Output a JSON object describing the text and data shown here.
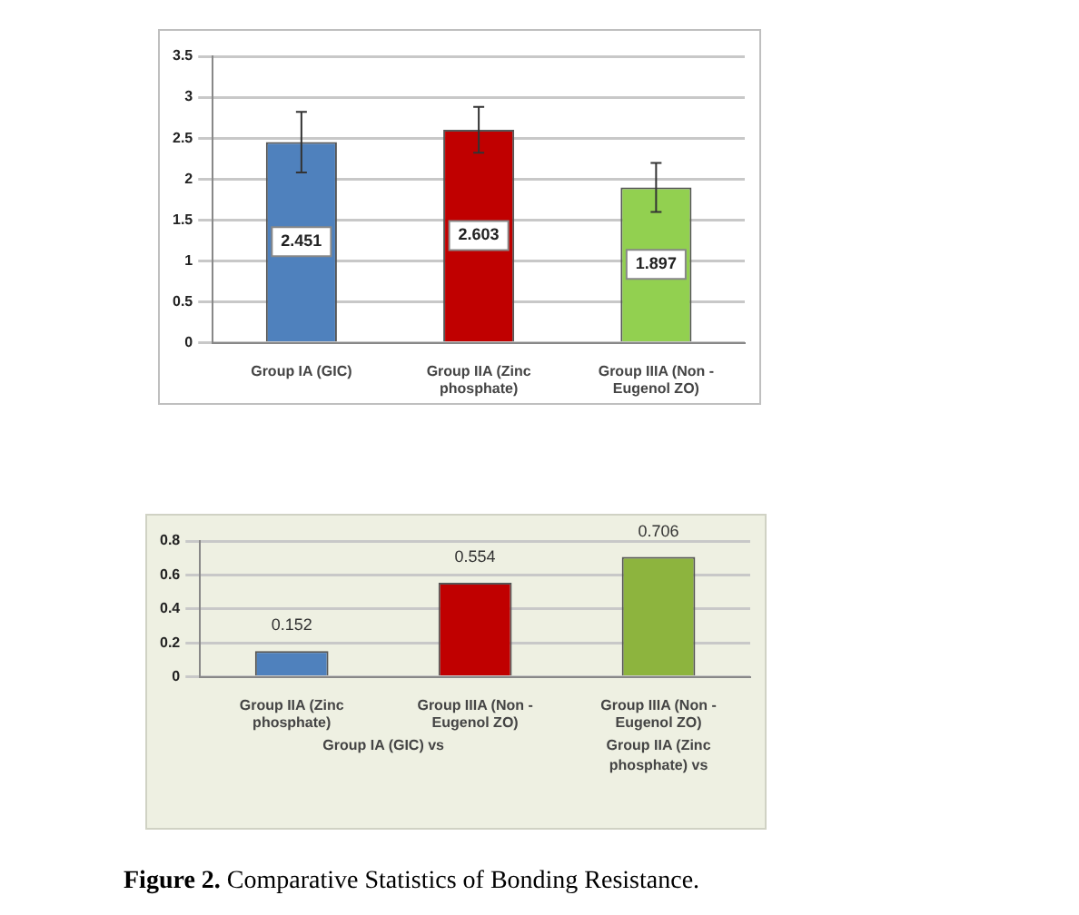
{
  "chart_data": [
    {
      "type": "bar",
      "categories": [
        "Group IA (GIC)",
        "Group IIA (Zinc phosphate)",
        "Group IIIA (Non - Eugenol ZO)"
      ],
      "values": [
        2.451,
        2.603,
        1.897
      ],
      "colors": [
        "#4f81bd",
        "#c00000",
        "#92d050"
      ],
      "errors": [
        0.37,
        0.28,
        0.3
      ],
      "ylim": [
        0,
        3.5
      ],
      "yticks": [
        0,
        0.5,
        1,
        1.5,
        2,
        2.5,
        3,
        3.5
      ],
      "grid": "y",
      "data_labels": true,
      "legend": false
    },
    {
      "type": "bar",
      "categories": [
        "Group IIA (Zinc phosphate)",
        "Group IIIA (Non - Eugenol ZO)",
        "Group IIIA (Non - Eugenol ZO)"
      ],
      "values": [
        0.152,
        0.554,
        0.706
      ],
      "colors": [
        "#4f81bd",
        "#c00000",
        "#8db43e"
      ],
      "ylim": [
        0,
        0.8
      ],
      "yticks": [
        0,
        0.2,
        0.4,
        0.6,
        0.8
      ],
      "grid": "y",
      "data_labels": true,
      "legend": false,
      "annotations": [
        "Group IA (GIC) vs",
        "Group IIA (Zinc phosphate) vs",
        "Figure 2. Comparative Statistics of Bonding Resistance."
      ]
    }
  ]
}
